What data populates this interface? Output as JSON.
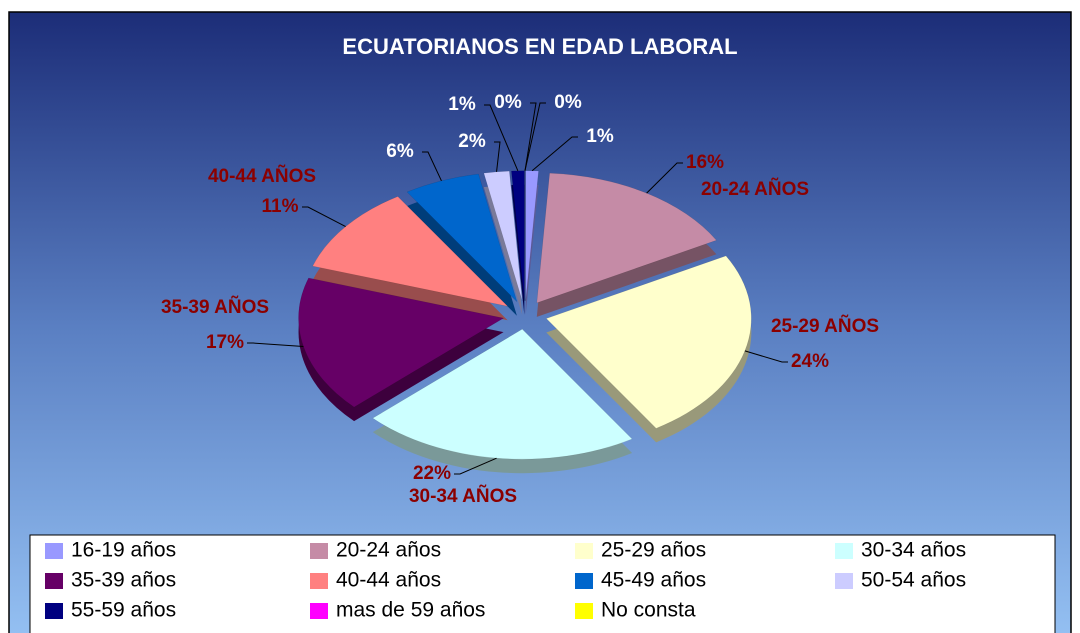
{
  "chart_data": {
    "type": "pie",
    "title": "ECUATORIANOS EN EDAD LABORAL",
    "categories": [
      "16-19 años",
      "20-24 años",
      "25-29 años",
      "30-34 años",
      "35-39 años",
      "40-44 años",
      "45-49 años",
      "50-54 años",
      "55-59 años",
      "mas de 59 años",
      "No consta"
    ],
    "values": [
      1,
      16,
      24,
      22,
      17,
      11,
      6,
      2,
      1,
      0,
      0
    ],
    "value_labels": [
      "1%",
      "16%",
      "24%",
      "22%",
      "17%",
      "11%",
      "6%",
      "2%",
      "1%",
      "0%",
      "0%"
    ],
    "slice_labels": [
      null,
      "20-24 AÑOS",
      "25-29 AÑOS",
      "30-34 AÑOS",
      "35-39 AÑOS",
      "40-44 AÑOS",
      null,
      null,
      null,
      null,
      null
    ],
    "colors": [
      "#9999ff",
      "#c58ba6",
      "#ffffcc",
      "#ccffff",
      "#660066",
      "#ff8080",
      "#0066cc",
      "#ccccff",
      "#000080",
      "#ff00ff",
      "#ffff00"
    ],
    "legend": "bottom"
  }
}
